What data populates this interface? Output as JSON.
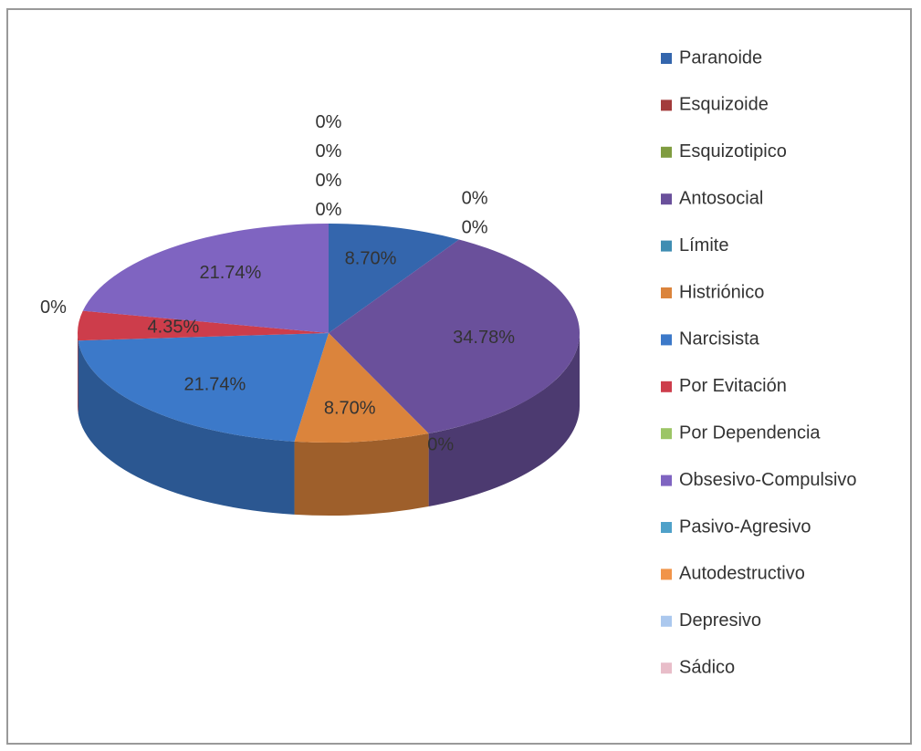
{
  "chart_data": {
    "type": "pie3d",
    "categories": [
      "Paranoide",
      "Esquizoide",
      "Esquizotipico",
      "Antosocial",
      "Límite",
      "Histriónico",
      "Narcisista",
      "Por Evitación",
      "Por Dependencia",
      "Obsesivo-Compulsivo",
      "Pasivo-Agresivo",
      "Autodestructivo",
      "Depresivo",
      "Sádico"
    ],
    "values": [
      8.7,
      0,
      0,
      34.78,
      0,
      8.7,
      21.74,
      4.35,
      0,
      21.74,
      0,
      0,
      0,
      0
    ],
    "value_labels": [
      "8.70%",
      "0%",
      "0%",
      "34.78%",
      "0%",
      "8.70%",
      "21.74%",
      "4.35%",
      "0%",
      "21.74%",
      "0%",
      "0%",
      "0%",
      "0%"
    ],
    "colors": [
      "#3466ad",
      "#a33b3b",
      "#7f9c40",
      "#6a509b",
      "#3f8db2",
      "#db843c",
      "#3c79c9",
      "#cd3d4b",
      "#9cc566",
      "#7f64c1",
      "#4fa1c9",
      "#f19449",
      "#abc8ee",
      "#e8bdc9"
    ],
    "legend": "right"
  }
}
